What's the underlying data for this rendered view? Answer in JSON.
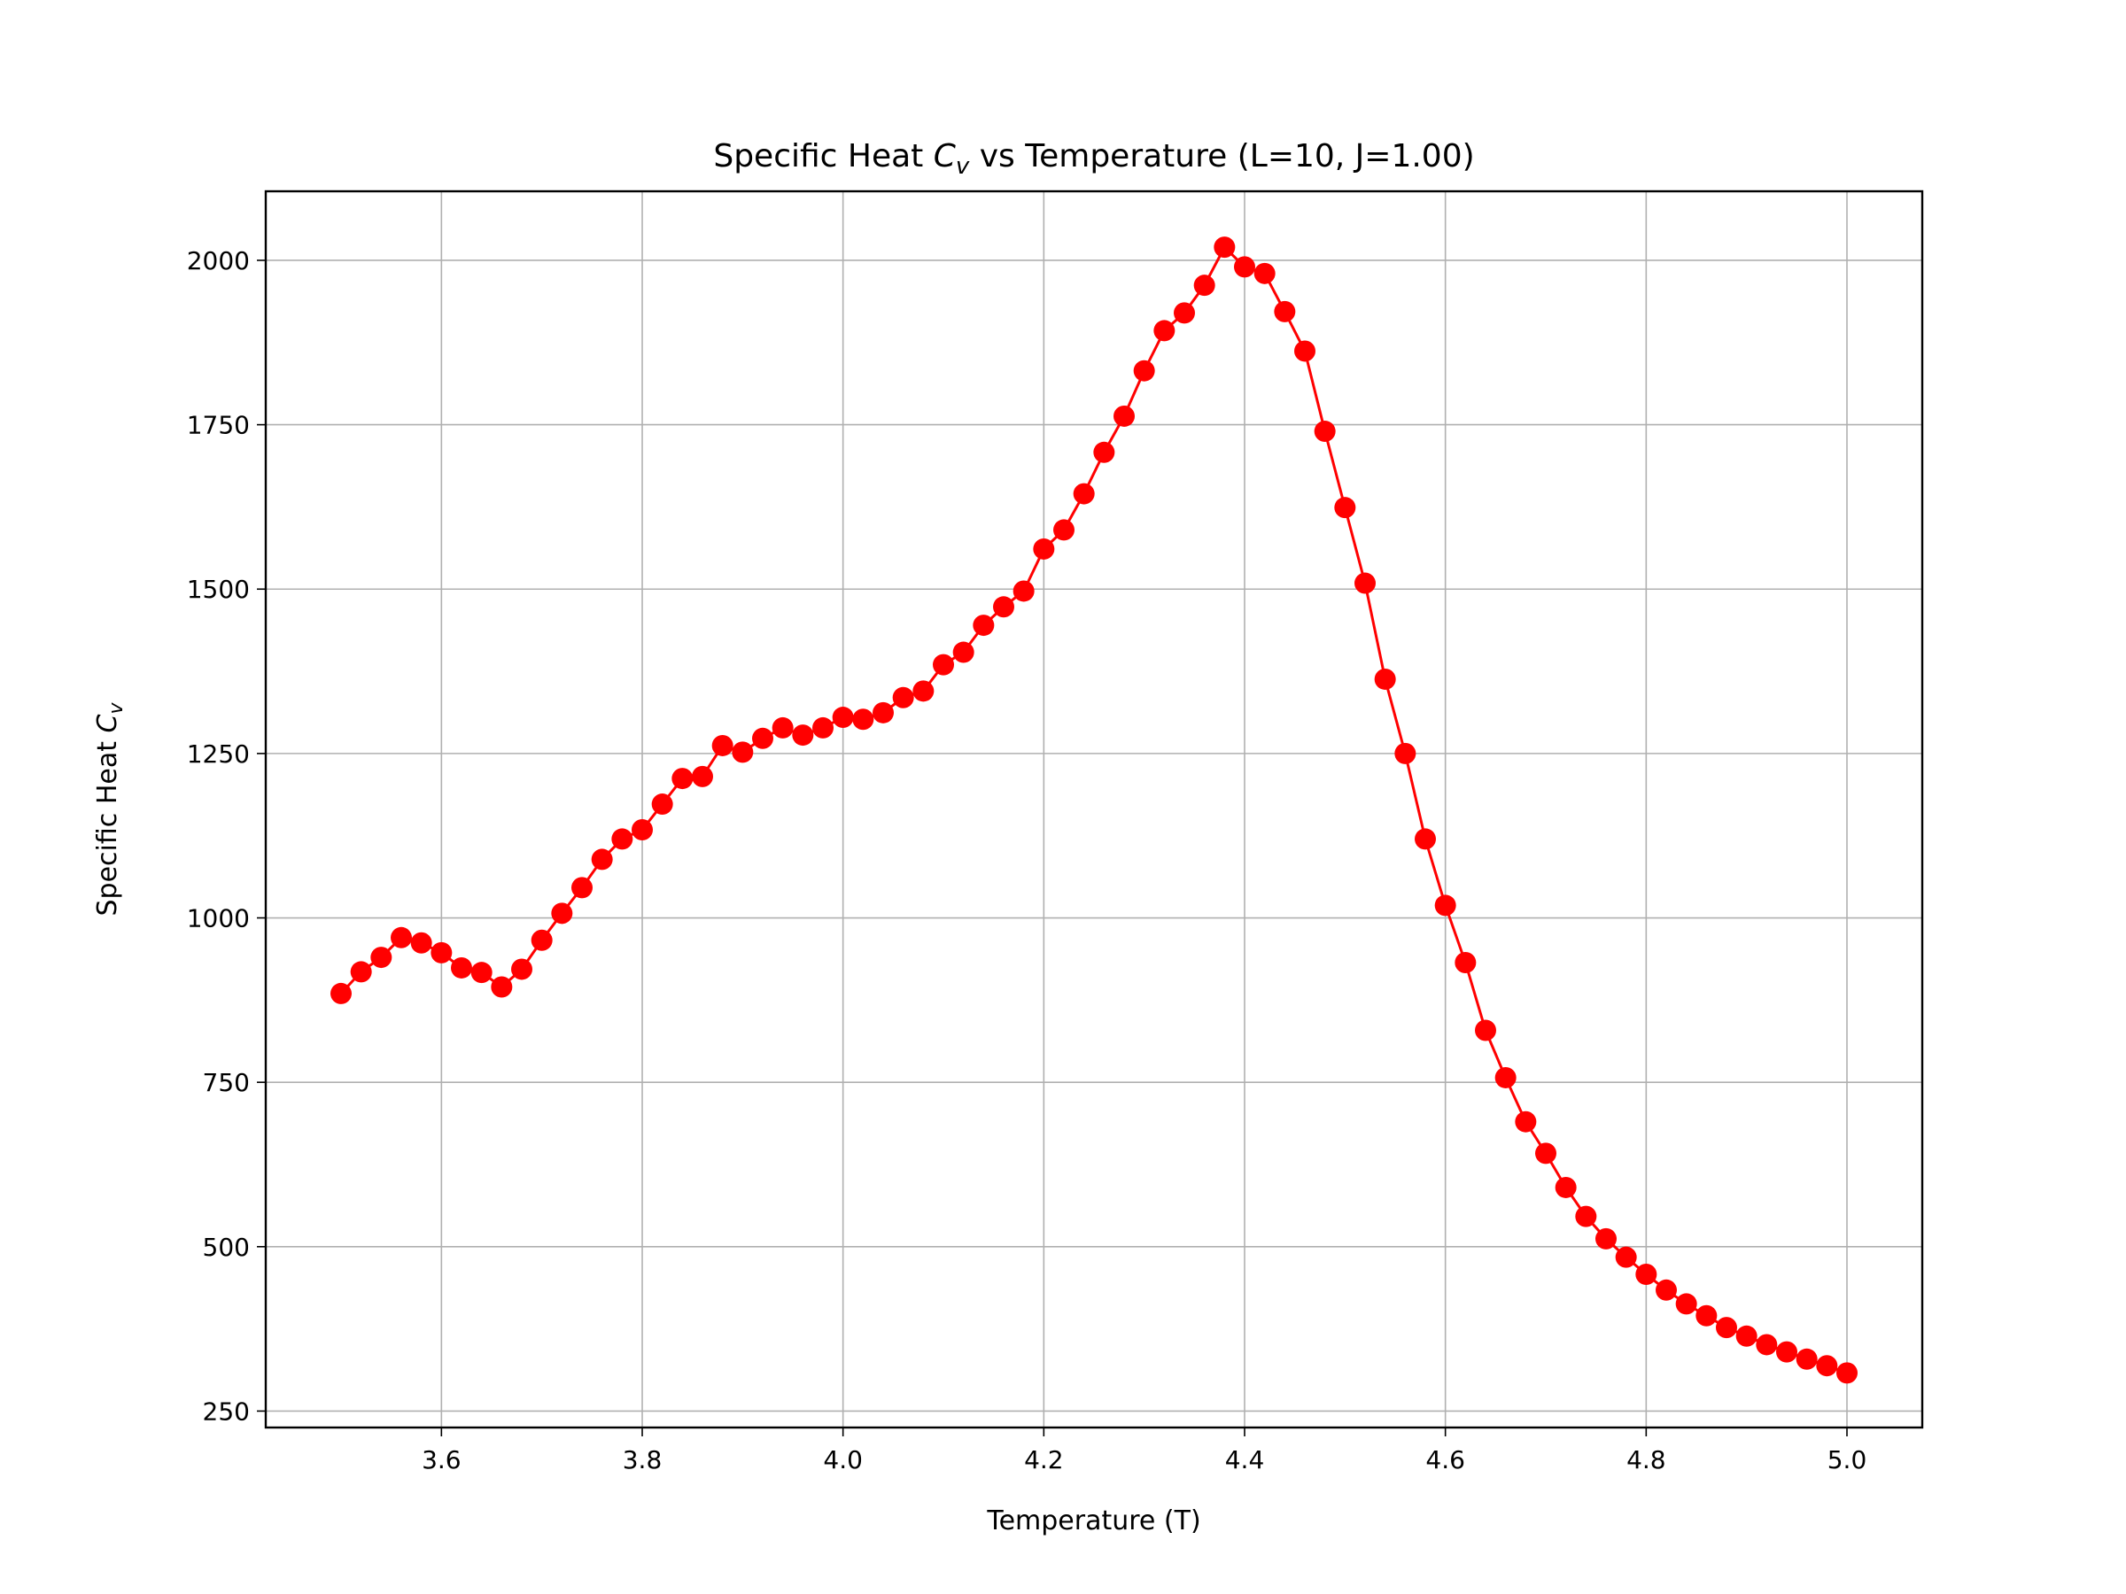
{
  "chart_data": {
    "type": "line",
    "title_main": "Specific Heat ",
    "title_symbol": "C",
    "title_subscript": "v",
    "title_rest": " vs Temperature (L=10, J=1.00)",
    "xlabel": "Temperature (T)",
    "ylabel_main": "Specific Heat ",
    "ylabel_symbol": "C",
    "ylabel_subscript": "v",
    "xlim": [
      3.425,
      5.075
    ],
    "ylim": [
      225,
      2105
    ],
    "xticks": [
      3.6,
      3.8,
      4.0,
      4.2,
      4.4,
      4.6,
      4.8,
      5.0
    ],
    "xtick_labels": [
      "3.6",
      "3.8",
      "4.0",
      "4.2",
      "4.4",
      "4.6",
      "4.8",
      "5.0"
    ],
    "yticks": [
      250,
      500,
      750,
      1000,
      1250,
      1500,
      1750,
      2000
    ],
    "ytick_labels": [
      "250",
      "500",
      "750",
      "1000",
      "1250",
      "1500",
      "1750",
      "2000"
    ],
    "grid": true,
    "series": [
      {
        "color": "#ff0000",
        "marker": "circle",
        "x": [
          3.5,
          3.52,
          3.54,
          3.56,
          3.58,
          3.6,
          3.62,
          3.64,
          3.66,
          3.68,
          3.7,
          3.72,
          3.74,
          3.76,
          3.78,
          3.8,
          3.82,
          3.84,
          3.86,
          3.88,
          3.9,
          3.92,
          3.94,
          3.96,
          3.98,
          4.0,
          4.02,
          4.04,
          4.06,
          4.08,
          4.1,
          4.12,
          4.14,
          4.16,
          4.18,
          4.2,
          4.22,
          4.24,
          4.26,
          4.28,
          4.3,
          4.32,
          4.34,
          4.36,
          4.38,
          4.4,
          4.42,
          4.44,
          4.46,
          4.48,
          4.5,
          4.52,
          4.54,
          4.56,
          4.58,
          4.6,
          4.62,
          4.64,
          4.66,
          4.68,
          4.7,
          4.72,
          4.74,
          4.76,
          4.78,
          4.8,
          4.82,
          4.84,
          4.86,
          4.88,
          4.9,
          4.92,
          4.94,
          4.96,
          4.98,
          5.0
        ],
        "y": [
          885,
          918,
          940,
          970,
          962,
          947,
          924,
          917,
          895,
          922,
          966,
          1007,
          1046,
          1089,
          1120,
          1134,
          1173,
          1212,
          1215,
          1262,
          1252,
          1273,
          1289,
          1278,
          1289,
          1305,
          1302,
          1312,
          1335,
          1345,
          1385,
          1404,
          1445,
          1473,
          1497,
          1561,
          1590,
          1645,
          1708,
          1763,
          1832,
          1893,
          1920,
          1962,
          2020,
          1990,
          1980,
          1922,
          1862,
          1740,
          1624,
          1509,
          1363,
          1250,
          1120,
          1019,
          932,
          829,
          757,
          690,
          642,
          590,
          546,
          512,
          484,
          458,
          434,
          413,
          395,
          377,
          364,
          351,
          340,
          329,
          319,
          308
        ]
      }
    ]
  }
}
